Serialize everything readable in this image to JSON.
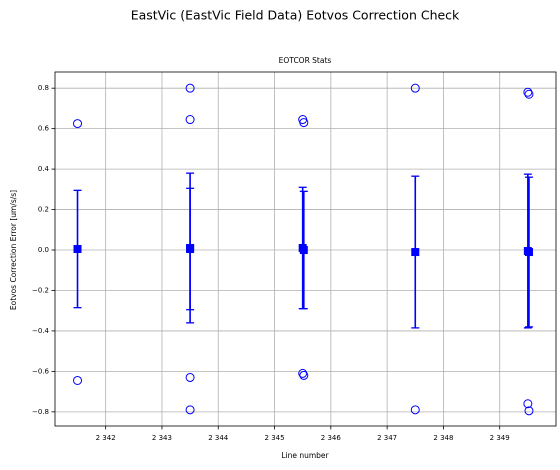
{
  "chart_data": {
    "type": "errorbar",
    "title": "EastVic (EastVic Field Data) Eotvos Correction Check",
    "subtitle": "EOTCOR Stats",
    "x_label": "Line number",
    "y_label": "Eotvos Correction Error [um/s/s]",
    "color": "#0000ff",
    "grid": true,
    "x": [
      2341.5,
      2343.5,
      2343.5,
      2345.5,
      2345.52,
      2347.5,
      2349.5,
      2349.52
    ],
    "mean": [
      0.005,
      0.01,
      0.005,
      0.01,
      0.0,
      -0.01,
      -0.005,
      -0.01
    ],
    "error": [
      0.29,
      0.37,
      0.3,
      0.3,
      0.29,
      0.375,
      0.38,
      0.37
    ],
    "min": [
      -0.645,
      -0.79,
      -0.63,
      -0.61,
      -0.62,
      -0.79,
      -0.76,
      -0.795
    ],
    "max": [
      0.625,
      0.8,
      0.645,
      0.645,
      0.63,
      0.8,
      0.78,
      0.77
    ],
    "xlim": [
      2341.1,
      2350.0
    ],
    "ylim": [
      -0.87,
      0.88
    ],
    "xticks": [
      {
        "value": 2342,
        "label": "2 342"
      },
      {
        "value": 2343,
        "label": "2 343"
      },
      {
        "value": 2344,
        "label": "2 344"
      },
      {
        "value": 2345,
        "label": "2 345"
      },
      {
        "value": 2346,
        "label": "2 346"
      },
      {
        "value": 2347,
        "label": "2 347"
      },
      {
        "value": 2348,
        "label": "2 348"
      },
      {
        "value": 2349,
        "label": "2 349"
      }
    ],
    "yticks": [
      {
        "value": -0.8,
        "label": "−0.8"
      },
      {
        "value": -0.6,
        "label": "−0.6"
      },
      {
        "value": -0.4,
        "label": "−0.4"
      },
      {
        "value": -0.2,
        "label": "−0.2"
      },
      {
        "value": 0,
        "label": "0.0"
      },
      {
        "value": 0.2,
        "label": "0.2"
      },
      {
        "value": 0.4,
        "label": "0.4"
      },
      {
        "value": 0.6,
        "label": "0.6"
      },
      {
        "value": 0.8,
        "label": "0.8"
      }
    ]
  }
}
